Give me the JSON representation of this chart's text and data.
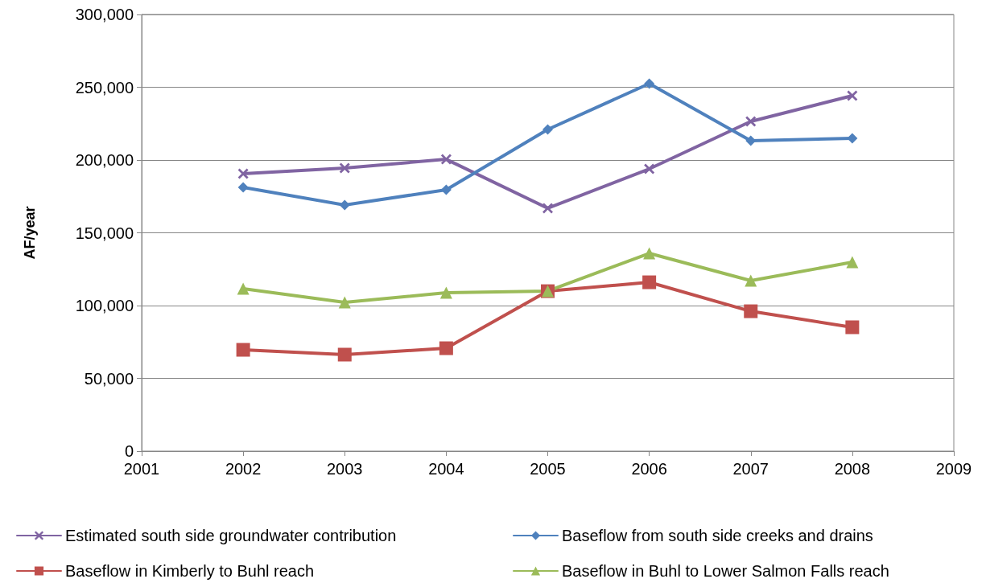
{
  "chart_data": {
    "type": "line",
    "ylabel": "AF/year",
    "x": [
      2002,
      2003,
      2004,
      2005,
      2006,
      2007,
      2008
    ],
    "series": [
      {
        "name": "Estimated south side groundwater contribution",
        "color": "#8064a2",
        "marker": "cross",
        "values": [
          190600,
          194500,
          200500,
          166900,
          193900,
          226500,
          244200
        ]
      },
      {
        "name": "Baseflow from south side creeks and drains",
        "color": "#4f81bd",
        "marker": "diamond",
        "values": [
          181200,
          169100,
          179600,
          221000,
          252500,
          213300,
          214900
        ]
      },
      {
        "name": "Baseflow in Kimberly to Buhl reach",
        "color": "#c0504d",
        "marker": "square",
        "values": [
          69600,
          66300,
          70700,
          109900,
          116000,
          96100,
          85100
        ]
      },
      {
        "name": "Baseflow in Buhl to Lower Salmon Falls reach",
        "color": "#9bbb59",
        "marker": "triangle",
        "values": [
          111600,
          102200,
          108800,
          110000,
          135900,
          117100,
          129800
        ]
      }
    ],
    "xlim": [
      2001,
      2009
    ],
    "xticks": [
      2001,
      2002,
      2003,
      2004,
      2005,
      2006,
      2007,
      2008,
      2009
    ],
    "ylim": [
      0,
      300000
    ],
    "yticks": [
      0,
      {
        "value": 50000,
        "label": "50,000"
      },
      {
        "value": 100000,
        "label": "100,000"
      },
      {
        "value": 150000,
        "label": "150,000"
      },
      {
        "value": 200000,
        "label": "200,000"
      },
      {
        "value": 250000,
        "label": "250,000"
      },
      {
        "value": 300000,
        "label": "300,000"
      }
    ],
    "grid": "y",
    "legend": "bottom",
    "line_style": "solid"
  }
}
